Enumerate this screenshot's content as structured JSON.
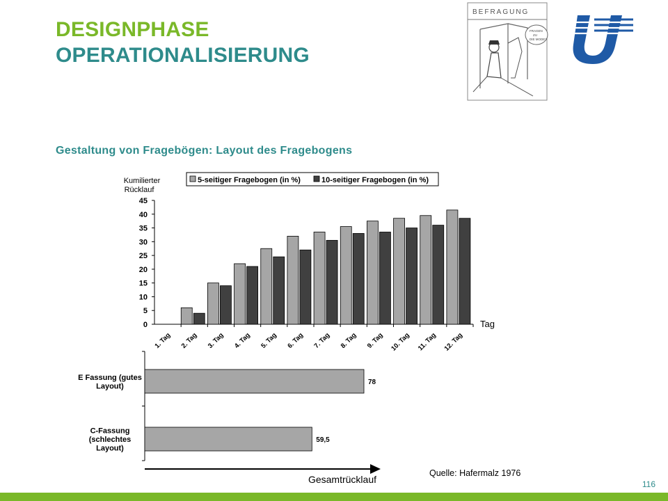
{
  "header": {
    "title_line1": "DESIGNPHASE",
    "title_line2": "OPERATIONALISIERUNG",
    "subtitle": "Gestaltung von Fragebögen: Layout des Fragebogens"
  },
  "cartoon": {
    "caption": "BEFRAGUNG",
    "bubble_text": "FRAGEN ZU DIE MODE?",
    "icon": "cartoon-interview-drawing"
  },
  "logo": {
    "icon": "university-logo-icon"
  },
  "colors": {
    "title_green": "#7ab829",
    "title_teal": "#2e8b8b",
    "subtitle_teal": "#2e8b8b",
    "footer_green": "#7ab829",
    "page_number": "#2e8b8b",
    "bar_light": "#a6a6a6",
    "bar_dark": "#404040",
    "logo_blue": "#1f5aa6"
  },
  "chart_data": [
    {
      "type": "bar",
      "ylabel": "Kumilierter Rücklauf",
      "xlabel": "Tag",
      "ylim": [
        0,
        45
      ],
      "yticks": [
        0,
        5,
        10,
        15,
        20,
        25,
        30,
        35,
        40,
        45
      ],
      "legend_position": "top",
      "categories": [
        "1. Tag",
        "2. Tag",
        "3. Tag",
        "4. Tag",
        "5. Tag",
        "6. Tag",
        "7. Tag",
        "8. Tag",
        "9. Tag",
        "10. Tag",
        "11. Tag",
        "12. Tag"
      ],
      "series": [
        {
          "name": "5-seitiger Fragebogen (in %)",
          "color": "#a6a6a6",
          "values": [
            0,
            6,
            15,
            22,
            27.5,
            32,
            33.5,
            35.5,
            37.5,
            38.5,
            39.5,
            41.5
          ]
        },
        {
          "name": "10-seitiger Fragebogen (in %)",
          "color": "#404040",
          "values": [
            0,
            4,
            14,
            21,
            24.5,
            27,
            30.5,
            33,
            33.5,
            35,
            36,
            38.5
          ]
        }
      ],
      "grid": false
    },
    {
      "type": "bar",
      "orientation": "horizontal",
      "xlabel": "Gesamtrücklauf",
      "xlim": [
        0,
        100
      ],
      "categories": [
        "E Fassung (gutes Layout)",
        "C-Fassung (schlechtes Layout)"
      ],
      "category_lines": [
        [
          "E Fassung (gutes",
          "Layout)"
        ],
        [
          "C-Fassung",
          "(schlechtes",
          "Layout)"
        ]
      ],
      "values": [
        78,
        59.5
      ],
      "value_labels": [
        "78",
        "59,5"
      ],
      "color": "#a6a6a6",
      "grid": false
    }
  ],
  "source": "Quelle: Hafermalz 1976",
  "page_number": "116"
}
